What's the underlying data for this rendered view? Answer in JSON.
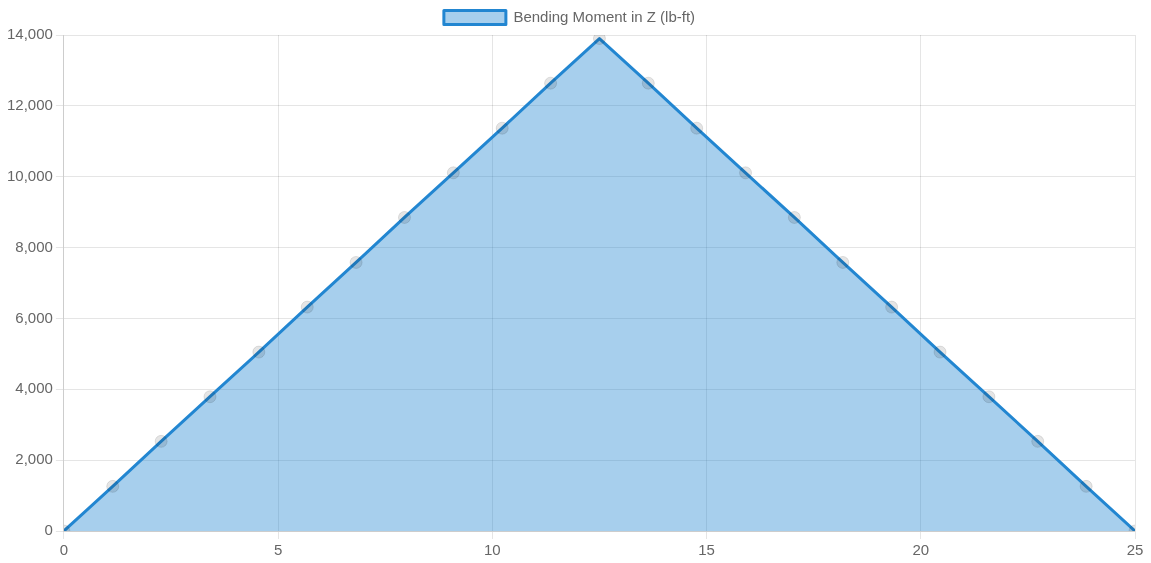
{
  "chart_data": {
    "type": "area",
    "x": [
      0,
      1.14,
      2.27,
      3.41,
      4.55,
      5.68,
      6.82,
      7.95,
      9.09,
      10.23,
      11.36,
      12.5,
      13.64,
      14.77,
      15.91,
      17.05,
      18.18,
      19.32,
      20.45,
      21.59,
      22.73,
      23.86,
      25
    ],
    "series": [
      {
        "name": "Bending Moment in Z (lb-ft)",
        "color": "#2286d1",
        "values": [
          0,
          1260,
          2530,
          3790,
          5050,
          6320,
          7580,
          8850,
          10110,
          11370,
          12640,
          13900,
          12640,
          11370,
          10110,
          8850,
          7580,
          6320,
          5050,
          3790,
          2530,
          1260,
          0
        ]
      }
    ],
    "xlim": [
      0,
      25
    ],
    "xticks": [
      0,
      5,
      10,
      15,
      20,
      25
    ],
    "ylim": [
      0,
      14000
    ],
    "yticks": [
      0,
      {
        "value": 2000,
        "label": "2,000"
      },
      {
        "value": 4000,
        "label": "4,000"
      },
      {
        "value": 6000,
        "label": "6,000"
      },
      {
        "value": 8000,
        "label": "8,000"
      },
      {
        "value": 10000,
        "label": "10,000"
      },
      {
        "value": 12000,
        "label": "12,000"
      },
      {
        "value": 14000,
        "label": "14,000"
      }
    ],
    "grid": true,
    "legend": "top",
    "marker": "circle",
    "line_style": "solid"
  }
}
